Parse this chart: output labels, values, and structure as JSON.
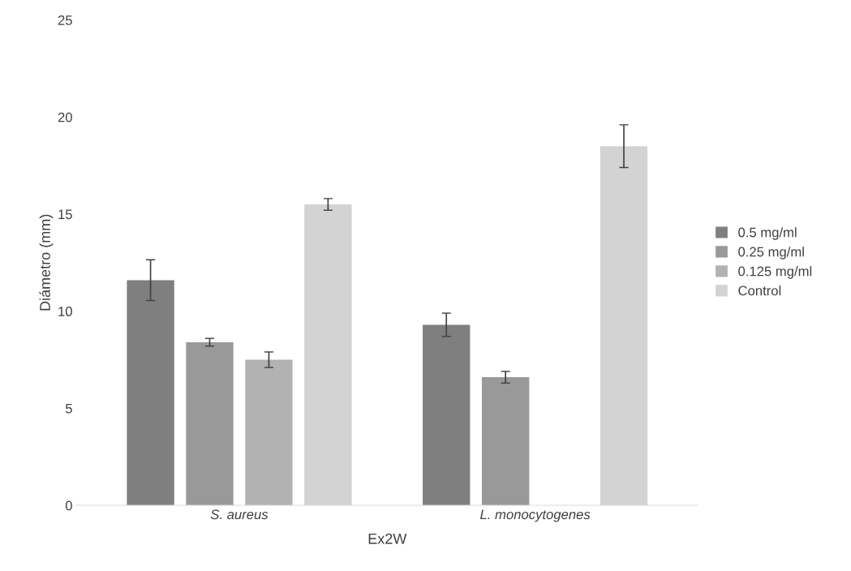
{
  "chart_data": {
    "type": "bar",
    "xlabel": "Ex2W",
    "ylabel": "Diámetro (mm)",
    "categories": [
      "S. aureus",
      "L. monocytogenes"
    ],
    "series": [
      {
        "name": "0.5 mg/ml",
        "color": "#7f7f7f",
        "values": [
          11.6,
          9.3
        ],
        "errors": [
          1.05,
          0.6
        ]
      },
      {
        "name": "0.25 mg/ml",
        "color": "#999999",
        "values": [
          8.4,
          6.6
        ],
        "errors": [
          0.2,
          0.3
        ]
      },
      {
        "name": "0.125 mg/ml",
        "color": "#b2b2b2",
        "values": [
          7.5,
          null
        ],
        "errors": [
          0.4,
          null
        ]
      },
      {
        "name": "Control",
        "color": "#d3d3d3",
        "values": [
          15.5,
          18.5
        ],
        "errors": [
          0.3,
          1.1
        ]
      }
    ],
    "ylim": [
      0,
      25
    ],
    "yticks": [
      0,
      5,
      10,
      15,
      20,
      25
    ],
    "grid": false,
    "legend": "right"
  }
}
